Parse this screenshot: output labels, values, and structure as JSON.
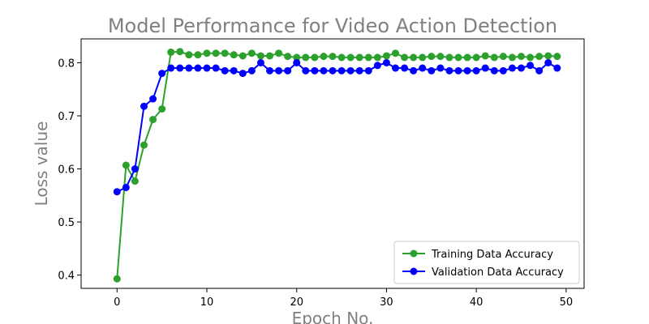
{
  "chart_data": {
    "type": "line",
    "title": "Model Performance for Video Action Detection",
    "xlabel": "Epoch No.",
    "ylabel": "Loss value",
    "xlim": [
      -4,
      52
    ],
    "ylim": [
      0.375,
      0.845
    ],
    "xticks": [
      0,
      10,
      20,
      30,
      40,
      50
    ],
    "yticks": [
      0.4,
      0.5,
      0.6,
      0.7,
      0.8
    ],
    "xtick_labels": [
      "0",
      "10",
      "20",
      "30",
      "40",
      "50"
    ],
    "ytick_labels": [
      "0.4",
      "0.5",
      "0.6",
      "0.7",
      "0.8"
    ],
    "grid": false,
    "legend_position": "lower-right",
    "x": [
      0,
      1,
      2,
      3,
      4,
      5,
      6,
      7,
      8,
      9,
      10,
      11,
      12,
      13,
      14,
      15,
      16,
      17,
      18,
      19,
      20,
      21,
      22,
      23,
      24,
      25,
      26,
      27,
      28,
      29,
      30,
      31,
      32,
      33,
      34,
      35,
      36,
      37,
      38,
      39,
      40,
      41,
      42,
      43,
      44,
      45,
      46,
      47,
      48,
      49
    ],
    "series": [
      {
        "name": "Training Data Accuracy",
        "color": "#2ca02c",
        "values": [
          0.393,
          0.607,
          0.577,
          0.645,
          0.693,
          0.713,
          0.82,
          0.821,
          0.815,
          0.815,
          0.818,
          0.818,
          0.818,
          0.815,
          0.813,
          0.818,
          0.813,
          0.813,
          0.818,
          0.812,
          0.81,
          0.81,
          0.81,
          0.812,
          0.812,
          0.81,
          0.81,
          0.81,
          0.81,
          0.81,
          0.813,
          0.818,
          0.81,
          0.81,
          0.81,
          0.812,
          0.812,
          0.81,
          0.81,
          0.81,
          0.81,
          0.813,
          0.81,
          0.812,
          0.81,
          0.812,
          0.81,
          0.812,
          0.813,
          0.812
        ]
      },
      {
        "name": "Validation Data Accuracy",
        "color": "#0000ff",
        "values": [
          0.557,
          0.565,
          0.6,
          0.718,
          0.732,
          0.78,
          0.79,
          0.79,
          0.79,
          0.79,
          0.79,
          0.79,
          0.785,
          0.785,
          0.78,
          0.785,
          0.8,
          0.785,
          0.785,
          0.785,
          0.8,
          0.785,
          0.785,
          0.785,
          0.785,
          0.785,
          0.785,
          0.785,
          0.785,
          0.795,
          0.8,
          0.79,
          0.79,
          0.785,
          0.79,
          0.785,
          0.79,
          0.785,
          0.785,
          0.785,
          0.785,
          0.79,
          0.785,
          0.785,
          0.79,
          0.79,
          0.795,
          0.785,
          0.8,
          0.79
        ]
      }
    ]
  }
}
